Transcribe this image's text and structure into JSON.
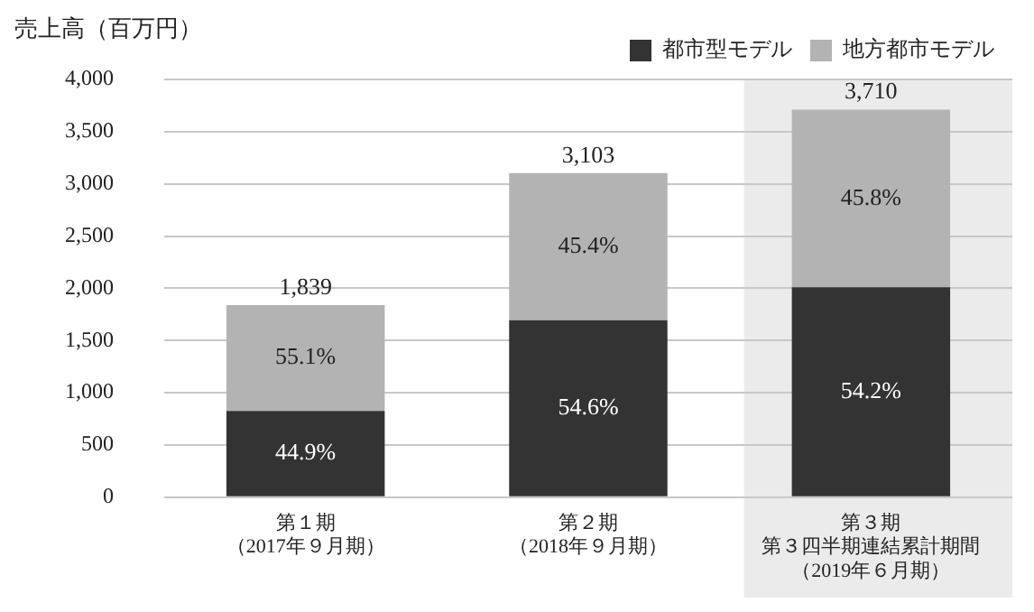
{
  "chart_data": {
    "type": "bar",
    "ylabel": "売上高（百万円）",
    "categories": [
      "第１期（2017年９月期）",
      "第２期（2018年９月期）",
      "第３期第３四半期連結累計期間（2019年６月期）"
    ],
    "stacked": true,
    "series": [
      {
        "name": "都市型モデル",
        "color": "#333333",
        "values": [
          826,
          1694,
          2011
        ]
      },
      {
        "name": "地方都市モデル",
        "color": "#b3b3b3",
        "values": [
          1013,
          1409,
          1699
        ]
      }
    ],
    "totals": [
      "1,839",
      "3,103",
      "3,710"
    ],
    "annotations": [
      "44.9%",
      "55.1%",
      "54.6%",
      "45.4%",
      "54.2%",
      "45.8%"
    ],
    "ylim": [
      0,
      4000
    ],
    "yticks": [
      0,
      500,
      {
        "value": 1000,
        "label": "1,000"
      },
      {
        "value": 1500,
        "label": "1,500"
      },
      {
        "value": 2000,
        "label": "2,000"
      },
      {
        "value": 2500,
        "label": "2,500"
      },
      {
        "value": 3000,
        "label": "3,000"
      },
      {
        "value": 3500,
        "label": "3,500"
      },
      {
        "value": 4000,
        "label": "4,000"
      }
    ],
    "bands": [
      {
        "axis": "x",
        "from": "第３期第３四半期連結累計期間（2019年６月期）",
        "to": "第３期第３四半期連結累計期間（2019年６月期）",
        "color": "#ebebeb"
      }
    ],
    "grid": "y",
    "legend": "top right"
  }
}
